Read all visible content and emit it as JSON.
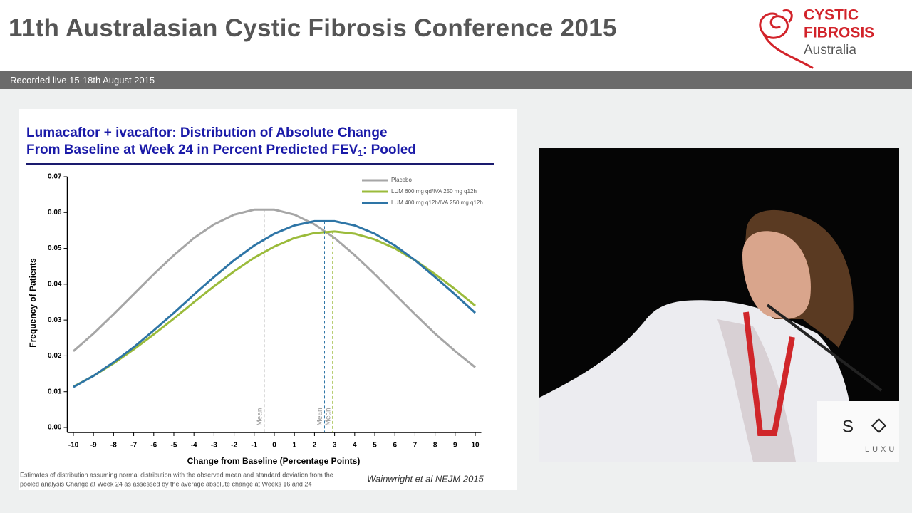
{
  "header": {
    "title": "11th Australasian Cystic Fibrosis Conference 2015",
    "subtitle": "Recorded live 15-18th August 2015",
    "logo": [
      "CYSTIC",
      "FIBROSIS",
      "Australia"
    ]
  },
  "video": {
    "sign": "S",
    "sign_sub": "LUXU"
  },
  "chart_data": {
    "type": "line",
    "title": [
      "Lumacaftor + ivacaftor: Distribution of Absolute Change",
      "From Baseline at Week 24 in Percent Predicted FEV",
      "1",
      ": Pooled"
    ],
    "x_label": "Change from Baseline (Percentage Points)",
    "y_label": "Frequency of Patients",
    "footnote": [
      "Estimates of distribution assuming normal distribution with the observed mean and standard deviation from the",
      "pooled analysis Change at Week 24 as assessed by the average absolute change at Weeks 16 and 24"
    ],
    "citation": "Wainwright et al NEJM 2015",
    "mean_label": "Mean",
    "x": [
      -10,
      -9,
      -8,
      -7,
      -6,
      -5,
      -4,
      -3,
      -2,
      -1,
      0,
      1,
      2,
      3,
      4,
      5,
      6,
      7,
      8,
      9,
      10
    ],
    "series": [
      {
        "name": "Placebo",
        "color": "#a6a6a6",
        "mean": -0.5,
        "values": [
          0.0213,
          0.0262,
          0.0316,
          0.0372,
          0.0428,
          0.0481,
          0.0529,
          0.0567,
          0.0594,
          0.0608,
          0.0608,
          0.0594,
          0.0567,
          0.0529,
          0.0481,
          0.0428,
          0.0372,
          0.0316,
          0.0262,
          0.0213,
          0.0168
        ]
      },
      {
        "name": "LUM 600 mg qd/IVA 250 mg q12h",
        "color": "#9bbb3b",
        "mean": 2.9,
        "values": [
          0.0114,
          0.0144,
          0.0179,
          0.0218,
          0.026,
          0.0304,
          0.035,
          0.0394,
          0.0436,
          0.0474,
          0.0505,
          0.0529,
          0.0543,
          0.0547,
          0.0541,
          0.0525,
          0.05,
          0.0467,
          0.0428,
          0.0386,
          0.034
        ]
      },
      {
        "name": "LUM 400 mg q12h/IVA 250 mg q12h",
        "color": "#2e75a6",
        "mean": 2.5,
        "values": [
          0.0113,
          0.0144,
          0.0182,
          0.0224,
          0.0271,
          0.032,
          0.0371,
          0.042,
          0.0467,
          0.0508,
          0.0541,
          0.0564,
          0.0576,
          0.0576,
          0.0564,
          0.0541,
          0.0508,
          0.0467,
          0.042,
          0.0371,
          0.032
        ]
      }
    ],
    "xlim": [
      -10.3,
      10.3
    ],
    "ylim": [
      0,
      0.07
    ],
    "xticks": [
      -10,
      -9,
      -8,
      -7,
      -6,
      -5,
      -4,
      -3,
      -2,
      -1,
      0,
      1,
      2,
      3,
      4,
      5,
      6,
      7,
      8,
      9,
      10
    ],
    "yticks": [
      {
        "value": 0,
        "label": "0.00"
      },
      {
        "value": 0.01,
        "label": "0.01"
      },
      {
        "value": 0.02,
        "label": "0.02"
      },
      {
        "value": 0.03,
        "label": "0.03"
      },
      {
        "value": 0.04,
        "label": "0.04"
      },
      {
        "value": 0.05,
        "label": "0.05"
      },
      {
        "value": 0.06,
        "label": "0.06"
      },
      {
        "value": 0.07,
        "label": "0.07"
      }
    ],
    "legend": "upper right"
  }
}
